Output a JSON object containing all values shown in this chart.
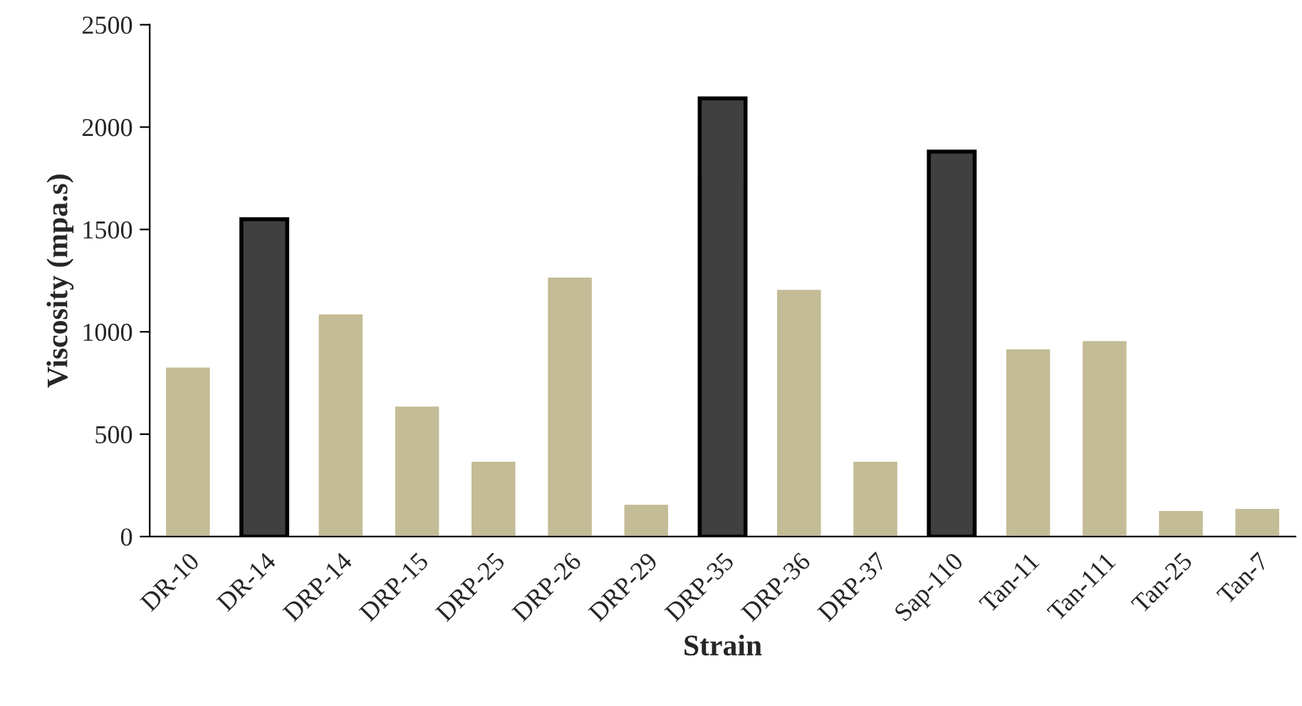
{
  "chart_data": {
    "type": "bar",
    "xlabel": "Strain",
    "ylabel": "Viscosity (mpa.s)",
    "categories": [
      "DR-10",
      "DR-14",
      "DRP-14",
      "DRP-15",
      "DRP-25",
      "DRP-26",
      "DRP-29",
      "DRP-35",
      "DRP-36",
      "DRP-37",
      "Sap-110",
      "Tan-11",
      "Tan-111",
      "Tan-25",
      "Tan-7"
    ],
    "values": [
      830,
      1550,
      1090,
      640,
      370,
      1270,
      160,
      2140,
      1210,
      370,
      1880,
      920,
      960,
      130,
      140
    ],
    "colors": [
      "#c4bc96",
      "#404040",
      "#c4bc96",
      "#c4bc96",
      "#c4bc96",
      "#c4bc96",
      "#c4bc96",
      "#404040",
      "#c4bc96",
      "#c4bc96",
      "#404040",
      "#c4bc96",
      "#c4bc96",
      "#c4bc96",
      "#c4bc96"
    ],
    "ylim": [
      0,
      2500
    ],
    "yticks": [
      0,
      500,
      1000,
      1500,
      2000,
      2500
    ],
    "grid": false
  }
}
